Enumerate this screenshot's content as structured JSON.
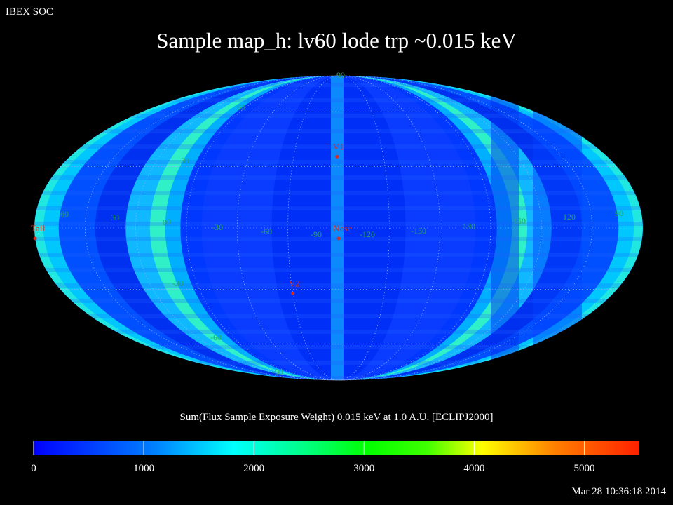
{
  "header": {
    "organization": "IBEX SOC",
    "title": "Sample map_h: lv60 lode trp ~0.015 keV"
  },
  "map": {
    "projection": "mollweide",
    "frame": "ECLIPJ2000",
    "parallel_labels": [
      "90",
      "60",
      "30",
      "0",
      "-30",
      "-60",
      "-90"
    ],
    "meridian_labels": [
      "60",
      "30",
      "0",
      "-30",
      "-60",
      "-90",
      "-120",
      "-150",
      "180",
      "150",
      "120",
      "90"
    ],
    "markers": [
      {
        "label": "V1",
        "lon": -104,
        "lat": 35,
        "color": "#d03020"
      },
      {
        "label": "Nose",
        "lon": -105,
        "lat": -5,
        "color": "#d03020"
      },
      {
        "label": "V2",
        "lon": -75,
        "lat": -32,
        "color": "#d03020"
      },
      {
        "label": "Tail",
        "lon": 75,
        "lat": -5,
        "color": "#d03020"
      }
    ]
  },
  "colorbar": {
    "title": "Sum(Flux Sample Exposure Weight)  0.015 keV at 1.0 A.U. [ECLIPJ2000]",
    "range": [
      0,
      5500
    ],
    "ticks": [
      "0",
      "1000",
      "2000",
      "3000",
      "4000",
      "5000"
    ],
    "colors": [
      "#0000ff",
      "#00ffff",
      "#00ff00",
      "#ffff00",
      "#ff0000"
    ]
  },
  "timestamp": "Mar 28 10:36:18 2014"
}
